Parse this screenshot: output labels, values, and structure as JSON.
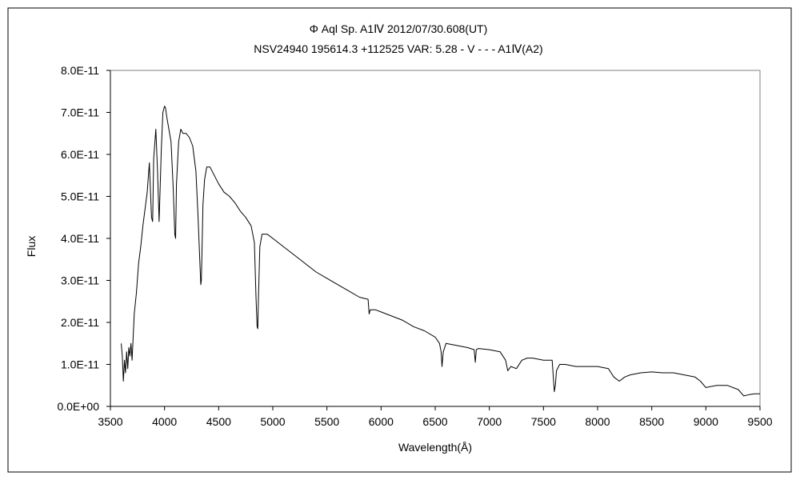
{
  "chart_data": {
    "type": "line",
    "title": "Φ Aql   Sp. A1Ⅳ   2012/07/30.608(UT)",
    "subtitle": "NSV24940 195614.3 +112525 VAR: 5.28 - V - - - A1Ⅳ(A2)",
    "xlabel": "Wavelength(Å)",
    "ylabel": "Flux",
    "xlim": [
      3500,
      9500
    ],
    "ylim": [
      0,
      8e-11
    ],
    "x_ticks": [
      "3500",
      "4000",
      "4500",
      "5000",
      "5500",
      "6000",
      "6500",
      "7000",
      "7500",
      "8000",
      "8500",
      "9000",
      "9500"
    ],
    "y_ticks": [
      "0.0E+00",
      "1.0E-11",
      "2.0E-11",
      "3.0E-11",
      "4.0E-11",
      "5.0E-11",
      "6.0E-11",
      "7.0E-11",
      "8.0E-11"
    ],
    "grid": false,
    "legend": "none",
    "line_color": "#000000",
    "series": [
      {
        "x": [
          3600,
          3610,
          3620,
          3630,
          3640,
          3650,
          3660,
          3670,
          3680,
          3690,
          3700,
          3720,
          3740,
          3760,
          3780,
          3800,
          3820,
          3840,
          3860,
          3880,
          3890,
          3900,
          3920,
          3935,
          3950,
          3970,
          3985,
          4000,
          4010,
          4020,
          4040,
          4060,
          4080,
          4095,
          4102,
          4110,
          4130,
          4150,
          4170,
          4200,
          4230,
          4260,
          4290,
          4310,
          4325,
          4335,
          4340,
          4345,
          4355,
          4370,
          4390,
          4420,
          4460,
          4500,
          4550,
          4600,
          4650,
          4700,
          4750,
          4800,
          4830,
          4845,
          4855,
          4861,
          4868,
          4880,
          4900,
          4950,
          5000,
          5100,
          5200,
          5300,
          5400,
          5500,
          5600,
          5700,
          5800,
          5880,
          5890,
          5900,
          5950,
          6000,
          6100,
          6200,
          6300,
          6400,
          6500,
          6540,
          6555,
          6563,
          6575,
          6600,
          6700,
          6800,
          6860,
          6870,
          6880,
          6900,
          7000,
          7100,
          7150,
          7170,
          7200,
          7250,
          7300,
          7350,
          7400,
          7500,
          7580,
          7600,
          7610,
          7620,
          7650,
          7700,
          7800,
          7900,
          8000,
          8100,
          8150,
          8200,
          8250,
          8300,
          8400,
          8500,
          8600,
          8700,
          8800,
          8900,
          8950,
          9000,
          9100,
          9200,
          9300,
          9350,
          9400,
          9450,
          9500
        ],
        "values": [
          1.5e-11,
          1.2e-11,
          6e-12,
          1.1e-11,
          8e-12,
          1.3e-11,
          9e-12,
          1.4e-11,
          1.2e-11,
          1.5e-11,
          1.1e-11,
          2.2e-11,
          2.7e-11,
          3.4e-11,
          3.8e-11,
          4.3e-11,
          4.7e-11,
          5.1e-11,
          5.8e-11,
          4.5e-11,
          4.4e-11,
          5.9e-11,
          6.6e-11,
          5.6e-11,
          4.4e-11,
          6.1e-11,
          7e-11,
          7.15e-11,
          7.1e-11,
          6.9e-11,
          6.6e-11,
          6.3e-11,
          5.2e-11,
          4.1e-11,
          4e-11,
          5.3e-11,
          6.3e-11,
          6.6e-11,
          6.5e-11,
          6.5e-11,
          6.4e-11,
          6.2e-11,
          5.6e-11,
          4.5e-11,
          3.5e-11,
          2.9e-11,
          3e-11,
          3.6e-11,
          4.8e-11,
          5.4e-11,
          5.7e-11,
          5.7e-11,
          5.5e-11,
          5.3e-11,
          5.1e-11,
          5e-11,
          4.85e-11,
          4.65e-11,
          4.5e-11,
          4.3e-11,
          3.9e-11,
          2.6e-11,
          1.9e-11,
          1.85e-11,
          2.6e-11,
          3.8e-11,
          4.1e-11,
          4.1e-11,
          4e-11,
          3.8e-11,
          3.6e-11,
          3.4e-11,
          3.2e-11,
          3.05e-11,
          2.9e-11,
          2.75e-11,
          2.6e-11,
          2.55e-11,
          2.2e-11,
          2.3e-11,
          2.3e-11,
          2.25e-11,
          2.15e-11,
          2.05e-11,
          1.9e-11,
          1.8e-11,
          1.65e-11,
          1.5e-11,
          1.3e-11,
          9.5e-12,
          1.3e-11,
          1.5e-11,
          1.45e-11,
          1.4e-11,
          1.35e-11,
          1.05e-11,
          1.35e-11,
          1.38e-11,
          1.35e-11,
          1.3e-11,
          1.1e-11,
          8.5e-12,
          9.5e-12,
          9e-12,
          1.1e-11,
          1.15e-11,
          1.15e-11,
          1.1e-11,
          1.1e-11,
          3.5e-12,
          5e-12,
          8.5e-12,
          1e-11,
          1e-11,
          9.5e-12,
          9.5e-12,
          9.5e-12,
          9e-12,
          7e-12,
          6e-12,
          7e-12,
          7.5e-12,
          8e-12,
          8.2e-12,
          8e-12,
          8e-12,
          7.5e-12,
          7e-12,
          6e-12,
          4.5e-12,
          5e-12,
          5e-12,
          4e-12,
          2.5e-12,
          2.8e-12,
          3e-12,
          3e-12
        ]
      }
    ]
  }
}
